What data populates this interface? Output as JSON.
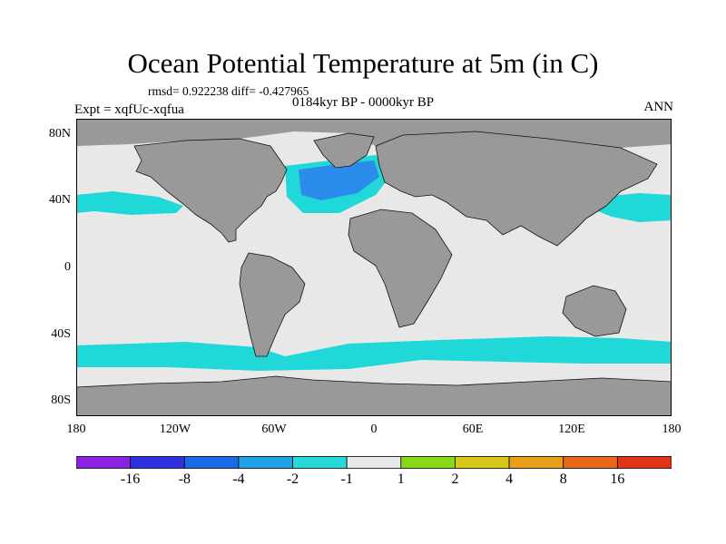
{
  "map": {
    "title": "Ocean Potential Temperature at 5m (in C)",
    "stats": "rmsd= 0.922238 diff= -0.427965",
    "period": "0184kyr BP - 0000kyr BP",
    "experiment": "Expt = xqfUc-xqfua",
    "season": "ANN",
    "lat_labels": [
      "80N",
      "40N",
      "0",
      "40S",
      "80S"
    ],
    "lon_labels": [
      "180",
      "120W",
      "60W",
      "0",
      "60E",
      "120E",
      "180"
    ],
    "colors": {
      "land": "#999999",
      "ocean_neutral": "#e8e8e8",
      "light_cyan": "#20d8d8",
      "cyan": "#10c0e0",
      "blue": "#2c8cec"
    }
  },
  "colorbar": {
    "labels": [
      "-16",
      "-8",
      "-4",
      "-2",
      "-1",
      "1",
      "2",
      "4",
      "8",
      "16"
    ],
    "colors": [
      "#8a22e4",
      "#3030e0",
      "#1a6ae8",
      "#20a0e8",
      "#28d8d8",
      "#e8e8e8",
      "#88d818",
      "#d8c818",
      "#e8a018",
      "#e86818",
      "#e03418"
    ]
  }
}
